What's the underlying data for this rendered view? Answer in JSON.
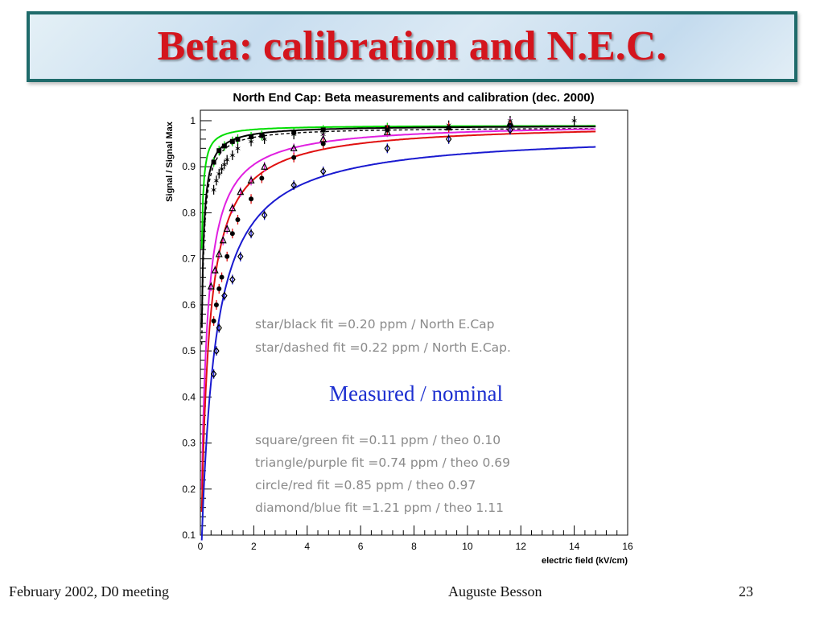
{
  "slide": {
    "title": "Beta: calibration and N.E.C.",
    "footer_left": "February 2002, D0 meeting",
    "footer_center": "Auguste Besson",
    "footer_right": "23",
    "colors": {
      "title_red": "#d4151d",
      "frame_teal": "#1f6b6b",
      "overlay_blue": "#1c2fd0"
    }
  },
  "chart_data": {
    "type": "scatter",
    "title": "North End Cap: Beta measurements and calibration (dec. 2000)",
    "xlabel": "electric field (kV/cm)",
    "ylabel": "Signal / Signal Max",
    "xlim": [
      0,
      16
    ],
    "ylim": [
      0.1,
      1.03
    ],
    "x_ticks": [
      0,
      2,
      4,
      6,
      8,
      10,
      12,
      14,
      16
    ],
    "y_ticks": [
      0.1,
      0.2,
      0.3,
      0.4,
      0.5,
      0.6,
      0.7,
      0.8,
      0.9,
      1
    ],
    "grid": false,
    "annotations": {
      "fit_star": [
        "star/black fit =0.20 ppm /  North E.Cap",
        "star/dashed fit =0.22 ppm / North E.Cap."
      ],
      "measured_label": "Measured / nominal",
      "fit_others": [
        "square/green fit =0.11 ppm / theo  0.10",
        "triangle/purple fit =0.74 ppm / theo  0.69",
        "circle/red fit =0.85 ppm / theo  0.97",
        "diamond/blue fit =1.21 ppm / theo  1.11"
      ]
    },
    "series": [
      {
        "marker": "square",
        "color": "#00dd00",
        "plateau": 0.99,
        "k": 0.0186,
        "x": [
          0.5,
          0.7,
          0.9,
          1.2,
          1.4,
          1.9,
          2.3,
          3.5,
          4.6,
          7.0
        ],
        "y": [
          0.91,
          0.935,
          0.945,
          0.955,
          0.96,
          0.965,
          0.968,
          0.975,
          0.98,
          0.985
        ]
      },
      {
        "marker": "star",
        "color": "#000000",
        "plateau": 0.99,
        "k": 0.04,
        "dashed": true,
        "x": [
          0.5,
          0.6,
          0.7,
          0.8,
          0.9,
          1.0,
          1.2,
          1.4,
          1.9,
          2.4,
          3.5,
          4.6,
          7.0,
          9.3,
          11.6,
          14.0
        ],
        "y": [
          0.85,
          0.87,
          0.885,
          0.895,
          0.905,
          0.915,
          0.925,
          0.94,
          0.955,
          0.96,
          0.97,
          0.97,
          0.98,
          0.99,
          1.0,
          1.0
        ]
      },
      {
        "marker": "triangle",
        "color": "#e020e0",
        "plateau": 0.995,
        "k": 0.2,
        "x": [
          0.4,
          0.55,
          0.7,
          0.85,
          1.0,
          1.2,
          1.5,
          1.9,
          2.4,
          3.5,
          4.6,
          7.0,
          9.3,
          11.6
        ],
        "y": [
          0.64,
          0.675,
          0.71,
          0.74,
          0.765,
          0.81,
          0.845,
          0.87,
          0.9,
          0.94,
          0.96,
          0.975,
          0.985,
          0.995
        ]
      },
      {
        "marker": "circle",
        "color": "#e01010",
        "plateau": 0.995,
        "k": 0.28,
        "x": [
          0.5,
          0.6,
          0.7,
          0.8,
          1.0,
          1.2,
          1.4,
          1.9,
          2.3,
          3.5,
          4.6,
          7.0,
          9.3,
          11.6
        ],
        "y": [
          0.565,
          0.6,
          0.635,
          0.66,
          0.705,
          0.755,
          0.785,
          0.83,
          0.875,
          0.92,
          0.95,
          0.98,
          0.985,
          0.99
        ]
      },
      {
        "marker": "diamond",
        "color": "#1a1ad0",
        "plateau": 0.975,
        "k": 0.5,
        "x": [
          0.5,
          0.6,
          0.7,
          0.9,
          1.2,
          1.5,
          1.9,
          2.4,
          3.5,
          4.6,
          7.0,
          9.3,
          11.6
        ],
        "y": [
          0.45,
          0.5,
          0.55,
          0.62,
          0.655,
          0.705,
          0.755,
          0.795,
          0.86,
          0.89,
          0.94,
          0.96,
          0.98
        ]
      }
    ]
  }
}
